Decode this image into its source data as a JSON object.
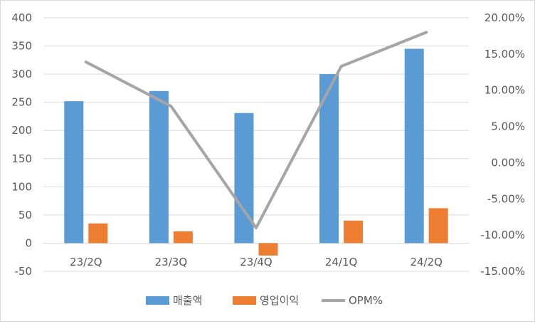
{
  "chart_data": {
    "type": "bar",
    "categories": [
      "23/2Q",
      "23/3Q",
      "23/4Q",
      "24/1Q",
      "24/2Q"
    ],
    "series": [
      {
        "name": "매출액",
        "kind": "bar",
        "axis": "left",
        "color": "#5b9bd5",
        "values": [
          252,
          270,
          231,
          300,
          345
        ]
      },
      {
        "name": "영업이익",
        "kind": "bar",
        "axis": "left",
        "color": "#ed7d31",
        "values": [
          35,
          21,
          -22,
          40,
          62
        ]
      },
      {
        "name": "OPM%",
        "kind": "line",
        "axis": "right",
        "color": "#a5a5a5",
        "values": [
          13.9,
          7.8,
          -9.0,
          13.3,
          18.0
        ]
      }
    ],
    "y_left": {
      "min": -50,
      "max": 400,
      "step": 50,
      "ticks": [
        "-50",
        "0",
        "50",
        "100",
        "150",
        "200",
        "250",
        "300",
        "350",
        "400"
      ]
    },
    "y_right": {
      "min": -15,
      "max": 20,
      "step": 5,
      "ticks": [
        "-15.00%",
        "-10.00%",
        "-5.00%",
        "0.00%",
        "5.00%",
        "10.00%",
        "15.00%",
        "20.00%"
      ]
    },
    "grid": true,
    "legend": "bottom"
  }
}
